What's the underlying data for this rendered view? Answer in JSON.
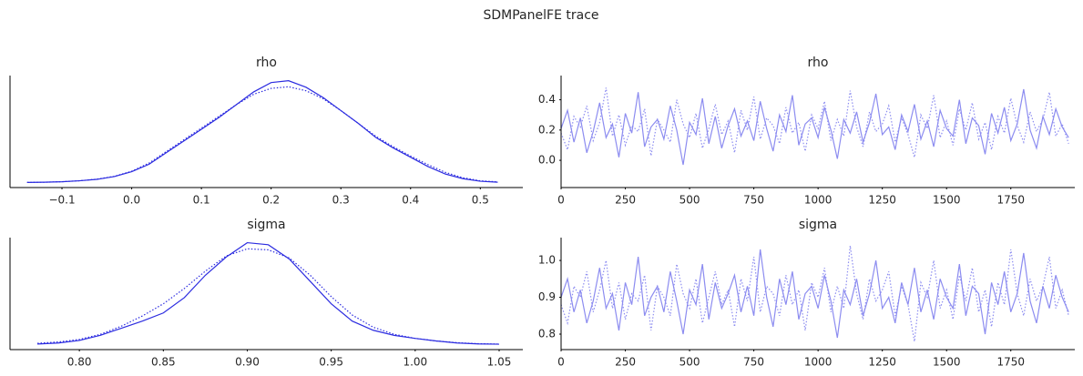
{
  "title": "SDMPanelFE trace",
  "chart_data": [
    {
      "type": "line",
      "title": "rho",
      "x": [
        -0.15,
        -0.125,
        -0.1,
        -0.075,
        -0.05,
        -0.025,
        0,
        0.025,
        0.05,
        0.075,
        0.1,
        0.125,
        0.15,
        0.175,
        0.2,
        0.225,
        0.25,
        0.275,
        0.3,
        0.325,
        0.35,
        0.375,
        0.4,
        0.425,
        0.45,
        0.475,
        0.5,
        0.525
      ],
      "series": [
        {
          "color": "#2c2ce0",
          "linestyle": "solid",
          "values": [
            0.02,
            0.03,
            0.05,
            0.09,
            0.15,
            0.27,
            0.48,
            0.8,
            1.3,
            1.8,
            2.3,
            2.8,
            3.35,
            3.9,
            4.3,
            4.38,
            4.1,
            3.65,
            3.1,
            2.55,
            1.95,
            1.5,
            1.1,
            0.7,
            0.38,
            0.18,
            0.07,
            0.03
          ]
        },
        {
          "color": "#2c2ce0",
          "linestyle": "dotted",
          "values": [
            0.02,
            0.03,
            0.05,
            0.09,
            0.16,
            0.28,
            0.5,
            0.85,
            1.35,
            1.85,
            2.35,
            2.85,
            3.35,
            3.8,
            4.05,
            4.12,
            3.95,
            3.6,
            3.1,
            2.55,
            2.0,
            1.55,
            1.15,
            0.78,
            0.45,
            0.22,
            0.09,
            0.04
          ]
        }
      ],
      "xlim": [
        -0.1745,
        0.561
      ],
      "ylim": [
        -0.2,
        4.6
      ],
      "xticks": [
        {
          "value": -0.1,
          "label": "−0.1"
        },
        {
          "value": 0,
          "label": "0.0"
        },
        0.1,
        0.2,
        0.3,
        0.4,
        0.5
      ]
    },
    {
      "type": "line",
      "title": "rho",
      "x": [
        0,
        25,
        50,
        75,
        100,
        125,
        150,
        175,
        200,
        225,
        250,
        275,
        300,
        325,
        350,
        375,
        400,
        425,
        450,
        475,
        500,
        525,
        550,
        575,
        600,
        625,
        650,
        675,
        700,
        725,
        750,
        775,
        800,
        825,
        850,
        875,
        900,
        925,
        950,
        975,
        1000,
        1025,
        1050,
        1075,
        1100,
        1125,
        1150,
        1175,
        1200,
        1225,
        1250,
        1275,
        1300,
        1325,
        1350,
        1375,
        1400,
        1425,
        1450,
        1475,
        1500,
        1525,
        1550,
        1575,
        1600,
        1625,
        1650,
        1675,
        1700,
        1725,
        1750,
        1775,
        1800,
        1825,
        1850,
        1875,
        1900,
        1925,
        1950,
        1975
      ],
      "series": [
        {
          "color": "#8c8cf0",
          "linestyle": "solid",
          "values": [
            0.21,
            0.33,
            0.12,
            0.28,
            0.05,
            0.19,
            0.38,
            0.15,
            0.24,
            0.02,
            0.31,
            0.18,
            0.45,
            0.09,
            0.22,
            0.27,
            0.14,
            0.36,
            0.2,
            -0.03,
            0.25,
            0.17,
            0.41,
            0.11,
            0.29,
            0.08,
            0.23,
            0.34,
            0.16,
            0.26,
            0.13,
            0.39,
            0.21,
            0.06,
            0.3,
            0.19,
            0.43,
            0.1,
            0.24,
            0.28,
            0.15,
            0.35,
            0.2,
            0.01,
            0.27,
            0.18,
            0.32,
            0.12,
            0.25,
            0.44,
            0.17,
            0.22,
            0.07,
            0.3,
            0.19,
            0.37,
            0.14,
            0.26,
            0.09,
            0.33,
            0.21,
            0.16,
            0.4,
            0.11,
            0.28,
            0.23,
            0.04,
            0.31,
            0.18,
            0.35,
            0.13,
            0.24,
            0.47,
            0.2,
            0.08,
            0.29,
            0.17,
            0.34,
            0.22,
            0.15
          ]
        },
        {
          "color": "#8c8cf0",
          "linestyle": "dotted",
          "values": [
            0.18,
            0.07,
            0.29,
            0.22,
            0.36,
            0.13,
            0.25,
            0.48,
            0.16,
            0.3,
            0.1,
            0.23,
            0.19,
            0.34,
            0.03,
            0.27,
            0.2,
            0.12,
            0.4,
            0.24,
            0.15,
            0.31,
            0.08,
            0.21,
            0.37,
            0.17,
            0.26,
            0.05,
            0.33,
            0.2,
            0.42,
            0.14,
            0.28,
            0.23,
            0.11,
            0.35,
            0.18,
            0.25,
            0.06,
            0.3,
            0.21,
            0.39,
            0.13,
            0.27,
            0.16,
            0.46,
            0.22,
            0.09,
            0.32,
            0.19,
            0.24,
            0.36,
            0.12,
            0.28,
            0.17,
            0.02,
            0.3,
            0.21,
            0.43,
            0.15,
            0.26,
            0.1,
            0.34,
            0.2,
            0.38,
            0.14,
            0.25,
            0.07,
            0.29,
            0.18,
            0.41,
            0.23,
            0.12,
            0.32,
            0.19,
            0.27,
            0.45,
            0.16,
            0.24,
            0.11
          ]
        }
      ],
      "xlim": [
        0,
        1999
      ],
      "ylim": [
        -0.18,
        0.56
      ],
      "xticks": [
        0,
        250,
        500,
        750,
        1000,
        1250,
        1500,
        1750
      ],
      "yticks": [
        {
          "value": 0,
          "label": "0.0"
        },
        0.2,
        0.4
      ]
    },
    {
      "type": "line",
      "title": "sigma",
      "x": [
        0.775,
        0.7875,
        0.8,
        0.8125,
        0.825,
        0.8375,
        0.85,
        0.8625,
        0.875,
        0.8875,
        0.9,
        0.9125,
        0.925,
        0.9375,
        0.95,
        0.9625,
        0.975,
        0.9875,
        1.0,
        1.0125,
        1.025,
        1.0375,
        1.05
      ],
      "series": [
        {
          "color": "#2c2ce0",
          "linestyle": "solid",
          "values": [
            0.05,
            0.15,
            0.4,
            0.9,
            1.6,
            2.3,
            3.1,
            4.6,
            6.8,
            8.6,
            10.0,
            9.8,
            8.4,
            6.2,
            4.0,
            2.3,
            1.4,
            0.9,
            0.6,
            0.35,
            0.15,
            0.06,
            0.03
          ]
        },
        {
          "color": "#2c2ce0",
          "linestyle": "dotted",
          "values": [
            0.12,
            0.25,
            0.5,
            1.0,
            1.8,
            2.8,
            4.0,
            5.5,
            7.2,
            8.7,
            9.4,
            9.3,
            8.5,
            6.8,
            4.7,
            2.9,
            1.7,
            1.0,
            0.6,
            0.35,
            0.18,
            0.08,
            0.04
          ]
        }
      ],
      "xlim": [
        0.7587,
        1.0641
      ],
      "ylim": [
        -0.5,
        10.5
      ],
      "xticks": [
        {
          "value": 0.8,
          "label": "0.80"
        },
        0.85,
        {
          "value": 0.9,
          "label": "0.90"
        },
        0.95,
        {
          "value": 1,
          "label": "1.00"
        },
        1.05
      ]
    },
    {
      "type": "line",
      "title": "sigma",
      "x": [
        0,
        25,
        50,
        75,
        100,
        125,
        150,
        175,
        200,
        225,
        250,
        275,
        300,
        325,
        350,
        375,
        400,
        425,
        450,
        475,
        500,
        525,
        550,
        575,
        600,
        625,
        650,
        675,
        700,
        725,
        750,
        775,
        800,
        825,
        850,
        875,
        900,
        925,
        950,
        975,
        1000,
        1025,
        1050,
        1075,
        1100,
        1125,
        1150,
        1175,
        1200,
        1225,
        1250,
        1275,
        1300,
        1325,
        1350,
        1375,
        1400,
        1425,
        1450,
        1475,
        1500,
        1525,
        1550,
        1575,
        1600,
        1625,
        1650,
        1675,
        1700,
        1725,
        1750,
        1775,
        1800,
        1825,
        1850,
        1875,
        1900,
        1925,
        1950,
        1975
      ],
      "series": [
        {
          "color": "#8c8cf0",
          "linestyle": "solid",
          "values": [
            0.9,
            0.95,
            0.86,
            0.92,
            0.83,
            0.89,
            0.98,
            0.87,
            0.91,
            0.81,
            0.94,
            0.88,
            1.01,
            0.85,
            0.9,
            0.93,
            0.86,
            0.97,
            0.89,
            0.8,
            0.92,
            0.88,
            0.99,
            0.84,
            0.94,
            0.87,
            0.91,
            0.96,
            0.86,
            0.93,
            0.85,
            1.03,
            0.9,
            0.82,
            0.95,
            0.88,
            0.97,
            0.84,
            0.91,
            0.93,
            0.87,
            0.96,
            0.89,
            0.79,
            0.92,
            0.88,
            0.95,
            0.85,
            0.91,
            1.0,
            0.87,
            0.9,
            0.83,
            0.94,
            0.88,
            0.98,
            0.86,
            0.92,
            0.84,
            0.95,
            0.9,
            0.87,
            0.99,
            0.85,
            0.93,
            0.91,
            0.8,
            0.94,
            0.88,
            0.97,
            0.86,
            0.91,
            1.02,
            0.89,
            0.83,
            0.93,
            0.87,
            0.96,
            0.9,
            0.86
          ]
        },
        {
          "color": "#8c8cf0",
          "linestyle": "dotted",
          "values": [
            0.88,
            0.83,
            0.93,
            0.9,
            0.97,
            0.86,
            0.92,
            1.0,
            0.87,
            0.94,
            0.84,
            0.91,
            0.89,
            0.96,
            0.81,
            0.93,
            0.9,
            0.85,
            0.99,
            0.91,
            0.87,
            0.95,
            0.83,
            0.9,
            0.97,
            0.88,
            0.92,
            0.82,
            0.95,
            0.89,
            1.01,
            0.86,
            0.93,
            0.91,
            0.85,
            0.96,
            0.88,
            0.92,
            0.81,
            0.94,
            0.9,
            0.98,
            0.86,
            0.93,
            0.87,
            1.04,
            0.91,
            0.84,
            0.95,
            0.89,
            0.92,
            0.97,
            0.85,
            0.93,
            0.88,
            0.78,
            0.94,
            0.9,
            1.0,
            0.87,
            0.92,
            0.84,
            0.96,
            0.89,
            0.98,
            0.86,
            0.92,
            0.82,
            0.94,
            0.88,
            1.03,
            0.91,
            0.85,
            0.95,
            0.89,
            0.93,
            1.01,
            0.87,
            0.92,
            0.85
          ]
        }
      ],
      "xlim": [
        0,
        1999
      ],
      "ylim": [
        0.758,
        1.062
      ],
      "xticks": [
        0,
        250,
        500,
        750,
        1000,
        1250,
        1500,
        1750
      ],
      "yticks": [
        {
          "value": 0.8,
          "label": "0.8"
        },
        0.9,
        {
          "value": 1,
          "label": "1.0"
        }
      ]
    }
  ]
}
